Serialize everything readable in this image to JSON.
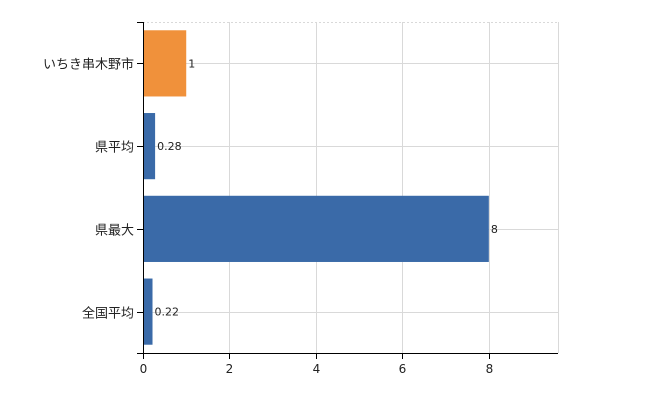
{
  "chart_data": {
    "type": "bar",
    "orientation": "horizontal",
    "categories": [
      "いちき串木野市",
      "県平均",
      "県最大",
      "全国平均"
    ],
    "values": [
      1,
      0.28,
      8,
      0.22
    ],
    "data_labels": [
      "1",
      "0.28",
      "8",
      "0.22"
    ],
    "bar_colors": [
      "#f0913b",
      "#3a6aa8",
      "#3a6aa8",
      "#3a6aa8"
    ],
    "xlim": [
      0,
      9.6
    ],
    "xticks": [
      0,
      2,
      4,
      6,
      8
    ],
    "grid": true,
    "title": "",
    "xlabel": "",
    "ylabel": ""
  }
}
